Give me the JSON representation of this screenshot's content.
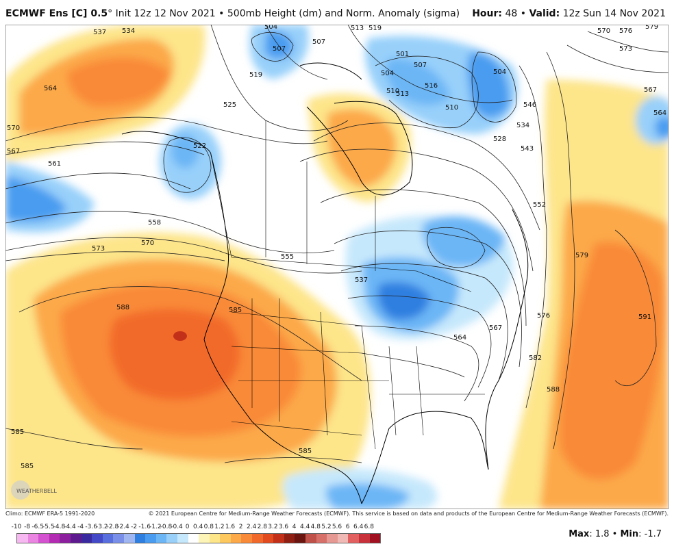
{
  "header": {
    "model": "ECMWF Ens [C] 0.5",
    "degree_symbol": "°",
    "init": " Init 12z 12 Nov 2021",
    "bullet": " • ",
    "product": "500mb Height (dm) and Norm. Anomaly (sigma)",
    "hour_label": "Hour:",
    "hour_value": " 48 • ",
    "valid_label": "Valid:",
    "valid_value": " 12z Sun 14 Nov 2021"
  },
  "footer": {
    "climo": "Climo: ECMWF ERA-5 1991-2020",
    "copyright": "© 2021 European Centre for Medium-Range Weather Forecasts (ECMWF). This service is based on data and products of the European Centre for Medium-Range Weather Forecasts (ECMWF)."
  },
  "colorbar": {
    "labels": [
      "-10",
      "-8",
      "-6.5",
      "-5.5",
      "-4.8",
      "-4.4",
      "-4",
      "-3.6",
      "-3.2",
      "-2.8",
      "-2.4",
      "-2",
      "-1.6",
      "-1.2",
      "-0.8",
      "-0.4",
      "0",
      "0.4",
      "0.8",
      "1.2",
      "1.6",
      "2",
      "2.4",
      "2.8",
      "3.2",
      "3.6",
      "4",
      "4.4",
      "4.8",
      "5.2",
      "5.6",
      "6",
      "6.4",
      "6.8"
    ],
    "colors": [
      "#f7b7f0",
      "#ea86e2",
      "#d452cf",
      "#b42bb3",
      "#8b1f9e",
      "#5d1a8f",
      "#3a2aa0",
      "#4449c7",
      "#5a6fde",
      "#7a90e8",
      "#9fb6f0",
      "#2e7fe0",
      "#4a9cf0",
      "#6cb6f6",
      "#98d0fa",
      "#c6e8fc",
      "#ffffff",
      "#fdf5b8",
      "#fde58a",
      "#fdc85e",
      "#fca94a",
      "#f98a39",
      "#f26a2b",
      "#e24a20",
      "#c3301a",
      "#8f1f12",
      "#6b1510",
      "#c0504a",
      "#d8706a",
      "#e69893",
      "#f0b9b5",
      "#e26060",
      "#c8303a",
      "#a01020"
    ],
    "unit_note": ""
  },
  "stats": {
    "max_label": "Max",
    "max_value": ": 1.8 • ",
    "min_label": "Min",
    "min_value": ": -1.7"
  },
  "logo": {
    "text": "WEATHERBELL"
  },
  "contour_labels": [
    "537",
    "534",
    "564",
    "570",
    "567",
    "561",
    "558",
    "573",
    "570",
    "588",
    "585",
    "585",
    "585",
    "585",
    "504",
    "507",
    "507",
    "510",
    "513",
    "519",
    "519",
    "525",
    "522",
    "501",
    "504",
    "507",
    "504",
    "510",
    "513",
    "516",
    "534",
    "528",
    "546",
    "543",
    "552",
    "555",
    "537",
    "567",
    "564",
    "576",
    "582",
    "588",
    "579",
    "591",
    "570",
    "576",
    "573",
    "579",
    "567",
    "564"
  ]
}
